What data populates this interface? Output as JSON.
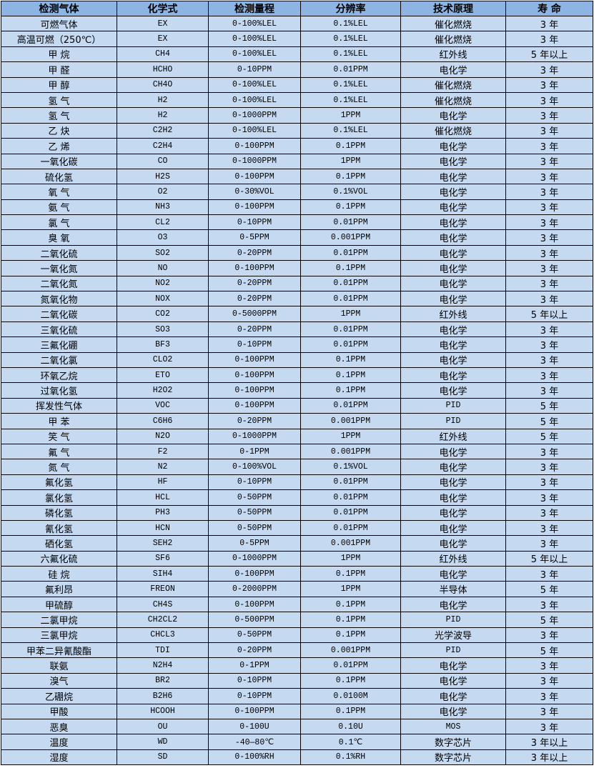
{
  "colors": {
    "header_bg": "#8db4e2",
    "row_bg": "#c5d9f1",
    "border": "#000000"
  },
  "table": {
    "headers": [
      "检测气体",
      "化学式",
      "检测量程",
      "分辨率",
      "技术原理",
      "寿 命"
    ],
    "rows": [
      [
        "可燃气体",
        "EX",
        "0-100%LEL",
        "0.1%LEL",
        "催化燃烧",
        "3 年"
      ],
      [
        "高温可燃（250℃）",
        "EX",
        "0-100%LEL",
        "0.1%LEL",
        "催化燃烧",
        "3 年"
      ],
      [
        "甲 烷",
        "CH4",
        "0-100%LEL",
        "0.1%LEL",
        "红外线",
        "5 年以上"
      ],
      [
        "甲 醛",
        "HCHO",
        "0-10PPM",
        "0.01PPM",
        "电化学",
        "3 年"
      ],
      [
        "甲 醇",
        "CH4O",
        "0-100%LEL",
        "0.1%LEL",
        "催化燃烧",
        "3 年"
      ],
      [
        "氢 气",
        "H2",
        "0-100%LEL",
        "0.1%LEL",
        "催化燃烧",
        "3 年"
      ],
      [
        "氢 气",
        "H2",
        "0-1000PPM",
        "1PPM",
        "电化学",
        "3 年"
      ],
      [
        "乙 炔",
        "C2H2",
        "0-100%LEL",
        "0.1%LEL",
        "催化燃烧",
        "3 年"
      ],
      [
        "乙 烯",
        "C2H4",
        "0-100PPM",
        "0.1PPM",
        "电化学",
        "3 年"
      ],
      [
        "一氧化碳",
        "CO",
        "0-1000PPM",
        "1PPM",
        "电化学",
        "3 年"
      ],
      [
        "硫化氢",
        "H2S",
        "0-100PPM",
        "0.1PPM",
        "电化学",
        "3 年"
      ],
      [
        "氧 气",
        "O2",
        "0-30%VOL",
        "0.1%VOL",
        "电化学",
        "3 年"
      ],
      [
        "氨 气",
        "NH3",
        "0-100PPM",
        "0.1PPM",
        "电化学",
        "3 年"
      ],
      [
        "氯 气",
        "CL2",
        "0-10PPM",
        "0.01PPM",
        "电化学",
        "3 年"
      ],
      [
        "臭 氧",
        "O3",
        "0-5PPM",
        "0.001PPM",
        "电化学",
        "3 年"
      ],
      [
        "二氧化硫",
        "SO2",
        "0-20PPM",
        "0.01PPM",
        "电化学",
        "3 年"
      ],
      [
        "一氧化氮",
        "NO",
        "0-100PPM",
        "0.1PPM",
        "电化学",
        "3 年"
      ],
      [
        "二氧化氮",
        "NO2",
        "0-20PPM",
        "0.01PPM",
        "电化学",
        "3 年"
      ],
      [
        "氮氧化物",
        "NOX",
        "0-20PPM",
        "0.01PPM",
        "电化学",
        "3 年"
      ],
      [
        "二氧化碳",
        "CO2",
        "0-5000PPM",
        "1PPM",
        "红外线",
        "5 年以上"
      ],
      [
        "三氧化硫",
        "SO3",
        "0-20PPM",
        "0.01PPM",
        "电化学",
        "3 年"
      ],
      [
        "三氟化硼",
        "BF3",
        "0-10PPM",
        "0.01PPM",
        "电化学",
        "3 年"
      ],
      [
        "二氧化氯",
        "CLO2",
        "0-100PPM",
        "0.1PPM",
        "电化学",
        "3 年"
      ],
      [
        "环氧乙烷",
        "ETO",
        "0-100PPM",
        "0.1PPM",
        "电化学",
        "3 年"
      ],
      [
        "过氧化氢",
        "H2O2",
        "0-100PPM",
        "0.1PPM",
        "电化学",
        "3 年"
      ],
      [
        "挥发性气体",
        "VOC",
        "0-100PPM",
        "0.01PPM",
        "PID",
        "5 年"
      ],
      [
        "甲 苯",
        "C6H6",
        "0-20PPM",
        "0.001PPM",
        "PID",
        "5 年"
      ],
      [
        "笑 气",
        "N2O",
        "0-1000PPM",
        "1PPM",
        "红外线",
        "5 年"
      ],
      [
        "氟 气",
        "F2",
        "0-1PPM",
        "0.001PPM",
        "电化学",
        "3 年"
      ],
      [
        "氮 气",
        "N2",
        "0-100%VOL",
        "0.1%VOL",
        "电化学",
        "3 年"
      ],
      [
        "氟化氢",
        "HF",
        "0-10PPM",
        "0.01PPM",
        "电化学",
        "3 年"
      ],
      [
        "氯化氢",
        "HCL",
        "0-50PPM",
        "0.01PPM",
        "电化学",
        "3 年"
      ],
      [
        "磷化氢",
        "PH3",
        "0-50PPM",
        "0.01PPM",
        "电化学",
        "3 年"
      ],
      [
        "氰化氢",
        "HCN",
        "0-50PPM",
        "0.01PPM",
        "电化学",
        "3 年"
      ],
      [
        "硒化氢",
        "SEH2",
        "0-5PPM",
        "0.001PPM",
        "电化学",
        "3 年"
      ],
      [
        "六氟化硫",
        "SF6",
        "0-1000PPM",
        "1PPM",
        "红外线",
        "5 年以上"
      ],
      [
        "硅 烷",
        "SIH4",
        "0-100PPM",
        "0.1PPM",
        "电化学",
        "3 年"
      ],
      [
        "氟利昂",
        "FREON",
        "0-2000PPM",
        "1PPM",
        "半导体",
        "5 年"
      ],
      [
        "甲硫醇",
        "CH4S",
        "0-100PPM",
        "0.1PPM",
        "电化学",
        "3 年"
      ],
      [
        "二氯甲烷",
        "CH2CL2",
        "0-500PPM",
        "0.1PPM",
        "PID",
        "5 年"
      ],
      [
        "三氯甲烷",
        "CHCL3",
        "0-50PPM",
        "0.1PPM",
        "光学波导",
        "3 年"
      ],
      [
        "甲苯二异氰酸酯",
        "TDI",
        "0-20PPM",
        "0.001PPM",
        "PID",
        "5 年"
      ],
      [
        "联氨",
        "N2H4",
        "0-1PPM",
        "0.01PPM",
        "电化学",
        "3 年"
      ],
      [
        "溴气",
        "BR2",
        "0-10PPM",
        "0.1PPM",
        "电化学",
        "3 年"
      ],
      [
        "乙硼烷",
        "B2H6",
        "0-10PPM",
        "0.0100M",
        "电化学",
        "3 年"
      ],
      [
        "甲酸",
        "HCOOH",
        "0-100PPM",
        "0.1PPM",
        "电化学",
        "3 年"
      ],
      [
        "恶臭",
        "OU",
        "0-100U",
        "0.10U",
        "MOS",
        "3 年"
      ],
      [
        "温度",
        "WD",
        "-40—80℃",
        "0.1℃",
        "数字芯片",
        "3 年以上"
      ],
      [
        "湿度",
        "SD",
        "0-100%RH",
        "0.1%RH",
        "数字芯片",
        "3 年以上"
      ]
    ]
  }
}
